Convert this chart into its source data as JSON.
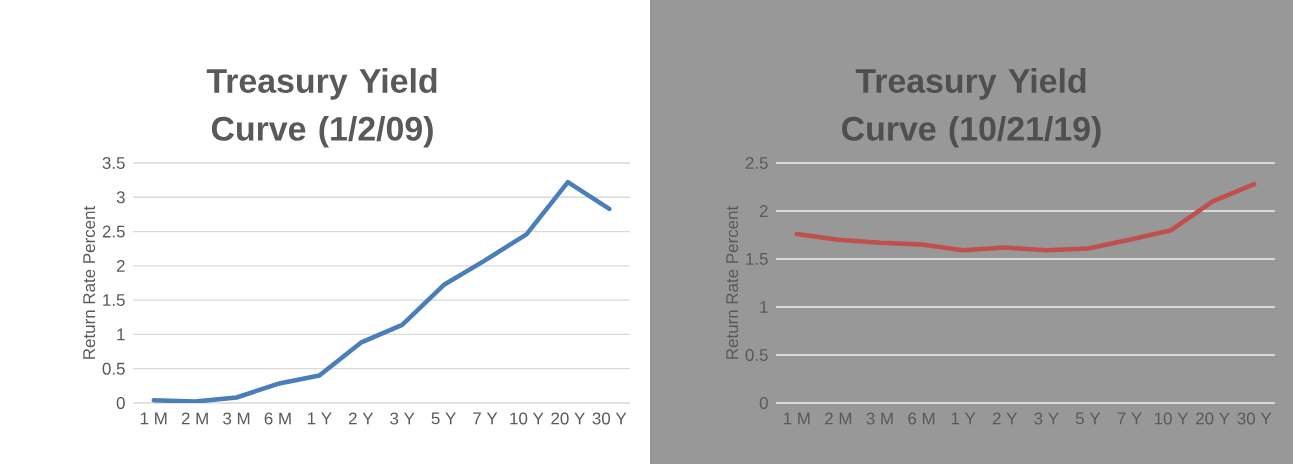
{
  "chart_data": [
    {
      "type": "line",
      "title": "Treasury Yield Curve (1/2/09)",
      "ylabel": "Return Rate Percent",
      "categories": [
        "1 M",
        "2 M",
        "3 M",
        "6 M",
        "1 Y",
        "2 Y",
        "3 Y",
        "5 Y",
        "7 Y",
        "10 Y",
        "20 Y",
        "30 Y"
      ],
      "series": [
        {
          "color": "#4a7ebb",
          "values": [
            0.04,
            0.02,
            0.08,
            0.28,
            0.4,
            0.88,
            1.14,
            1.72,
            2.08,
            2.46,
            3.22,
            2.83
          ]
        }
      ],
      "ylim": [
        0,
        3.5
      ],
      "yticks": [
        0,
        0.5,
        1,
        1.5,
        2,
        2.5,
        3,
        3.5
      ],
      "grid": "y"
    },
    {
      "type": "line",
      "title": "Treasury Yield Curve (10/21/19)",
      "ylabel": "Return Rate Percent",
      "categories": [
        "1 M",
        "2 M",
        "3 M",
        "6 M",
        "1 Y",
        "2 Y",
        "3 Y",
        "5 Y",
        "7 Y",
        "10 Y",
        "20 Y",
        "30 Y"
      ],
      "series": [
        {
          "color": "#c0504d",
          "values": [
            1.76,
            1.7,
            1.67,
            1.65,
            1.59,
            1.62,
            1.59,
            1.61,
            1.7,
            1.8,
            2.1,
            2.28
          ]
        }
      ],
      "ylim": [
        0,
        2.5
      ],
      "yticks": [
        0,
        0.5,
        1,
        1.5,
        2,
        2.5
      ],
      "grid": "y"
    }
  ]
}
